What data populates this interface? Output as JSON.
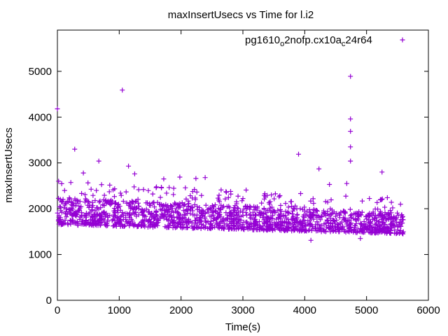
{
  "chart_data": {
    "type": "scatter",
    "title": "maxInsertUsecs vs Time for l.i2",
    "xlabel": "Time(s)",
    "ylabel": "maxInsertUsecs",
    "xlim": [
      0,
      6000
    ],
    "ylim": [
      0,
      5900
    ],
    "xticks": [
      "0",
      "1000",
      "2000",
      "3000",
      "4000",
      "5000",
      "6000"
    ],
    "yticks": [
      "0",
      "1000",
      "2000",
      "3000",
      "4000",
      "5000"
    ],
    "grid": false,
    "legend_position": "top-right",
    "series": [
      {
        "name": "pg1610_o2nofp.cx10a_c24r64",
        "name_parts": {
          "base": "pg1610",
          "sub1": "o",
          "mid": "2nofp.cx10a",
          "sub2": "c",
          "tail": "24r64"
        },
        "color": "#9400d3",
        "marker": "plus",
        "x_range": [
          0,
          5600
        ],
        "band_start": [
          1650,
          2250
        ],
        "band_end": [
          1450,
          1900
        ],
        "outliers": [
          {
            "x": 0,
            "y": 4180
          },
          {
            "x": 20,
            "y": 2600
          },
          {
            "x": 280,
            "y": 3300
          },
          {
            "x": 420,
            "y": 2780
          },
          {
            "x": 670,
            "y": 3040
          },
          {
            "x": 1050,
            "y": 4590
          },
          {
            "x": 1150,
            "y": 2930
          },
          {
            "x": 1250,
            "y": 2760
          },
          {
            "x": 1720,
            "y": 2650
          },
          {
            "x": 1980,
            "y": 2690
          },
          {
            "x": 2240,
            "y": 2660
          },
          {
            "x": 2390,
            "y": 2680
          },
          {
            "x": 3900,
            "y": 3190
          },
          {
            "x": 4230,
            "y": 2870
          },
          {
            "x": 4400,
            "y": 2530
          },
          {
            "x": 4680,
            "y": 2550
          },
          {
            "x": 4740,
            "y": 4890
          },
          {
            "x": 4740,
            "y": 3960
          },
          {
            "x": 4740,
            "y": 3690
          },
          {
            "x": 4740,
            "y": 3350
          },
          {
            "x": 4740,
            "y": 3040
          },
          {
            "x": 5250,
            "y": 2800
          },
          {
            "x": 4100,
            "y": 1310
          },
          {
            "x": 4900,
            "y": 1350
          }
        ]
      }
    ]
  }
}
